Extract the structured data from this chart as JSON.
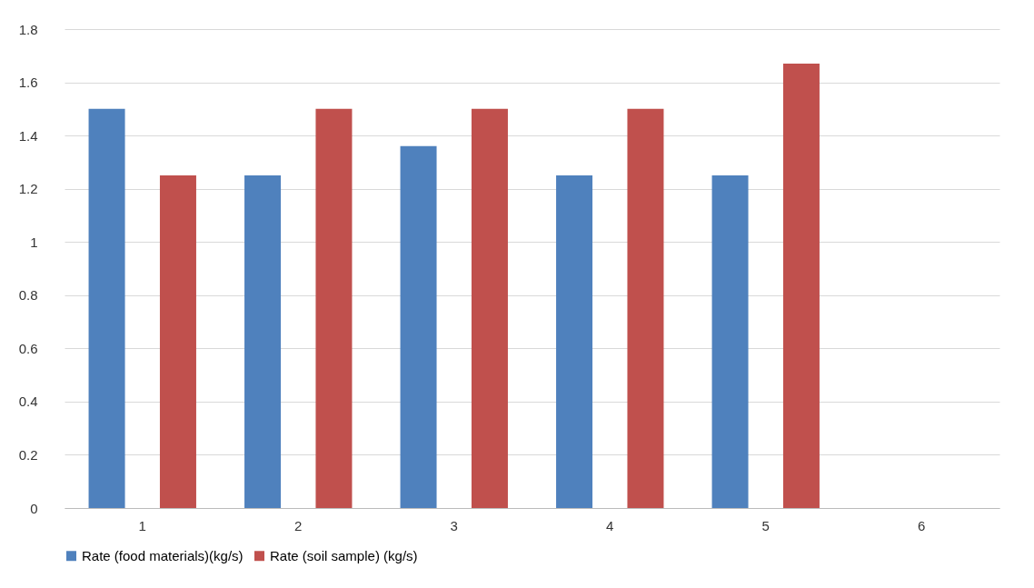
{
  "chart_data": {
    "type": "bar",
    "categories": [
      "1",
      "2",
      "3",
      "4",
      "5",
      "6"
    ],
    "series": [
      {
        "name": "Rate (food materials)(kg/s)",
        "color": "#4f81bd",
        "values": [
          1.5,
          1.25,
          1.36,
          1.25,
          1.25,
          null
        ]
      },
      {
        "name": "Rate (soil sample) (kg/s)",
        "color": "#c0504d",
        "values": [
          1.25,
          1.5,
          1.5,
          1.5,
          1.67,
          null
        ]
      }
    ],
    "ylim": [
      0,
      1.8
    ],
    "yticks": [
      0,
      0.2,
      0.4,
      0.6,
      0.8,
      1,
      1.2,
      1.4,
      1.6,
      1.8
    ],
    "grid": "y",
    "legend": "bottom"
  }
}
